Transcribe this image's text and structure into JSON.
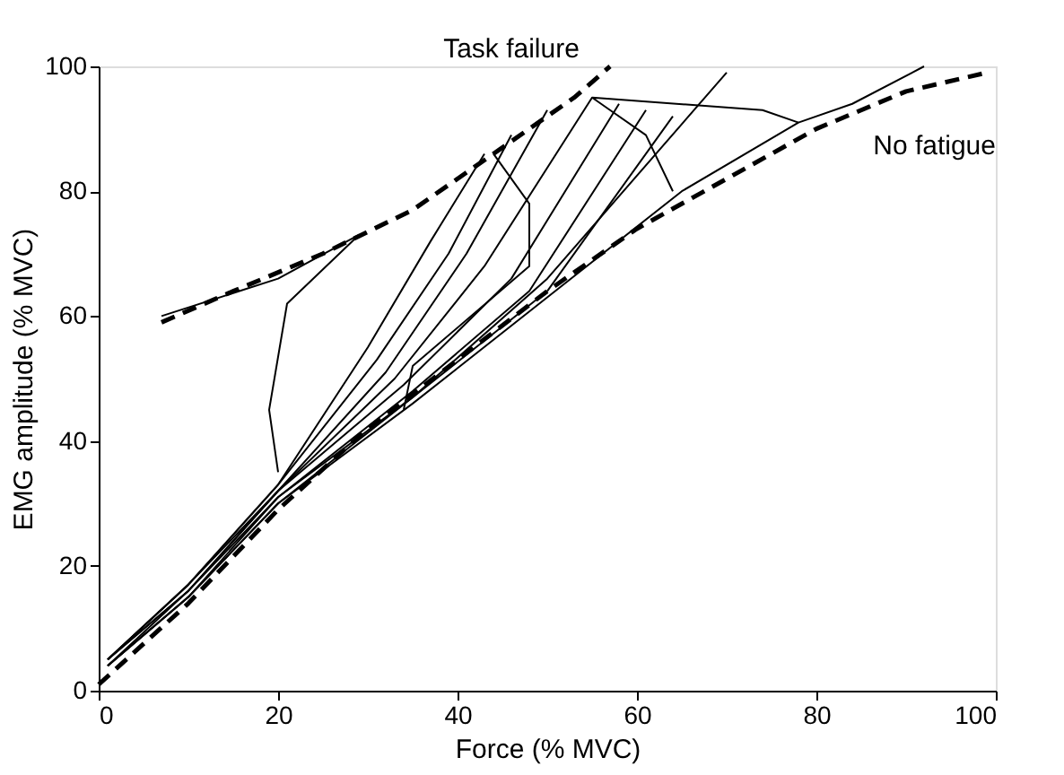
{
  "chart_data": {
    "type": "line",
    "xlabel": "Force (% MVC)",
    "ylabel": "EMG amplitude (% MVC)",
    "xlim": [
      0,
      100
    ],
    "ylim": [
      0,
      100
    ],
    "xticks": [
      0,
      20,
      40,
      60,
      80,
      100
    ],
    "yticks": [
      0,
      20,
      40,
      60,
      80,
      100
    ],
    "grid": false,
    "marker": "none",
    "series": [
      {
        "color": "#000000",
        "line_style": "dashed",
        "x": [
          7,
          15,
          25,
          35,
          42,
          48,
          53,
          57
        ],
        "values": [
          59,
          64,
          70,
          77,
          84,
          90,
          95,
          100
        ]
      },
      {
        "color": "#000000",
        "line_style": "dashed",
        "x": [
          0,
          10,
          20,
          30,
          40,
          50,
          60,
          70,
          80,
          90,
          99
        ],
        "values": [
          1,
          14,
          29,
          42,
          53,
          64,
          74,
          82,
          90,
          96,
          99
        ]
      },
      {
        "color": "#000000",
        "line_style": "solid",
        "x": [
          1,
          10,
          20,
          30,
          37,
          43
        ],
        "values": [
          5,
          17,
          33,
          55,
          72,
          86
        ]
      },
      {
        "color": "#000000",
        "line_style": "solid",
        "x": [
          1,
          10,
          20,
          31,
          39,
          46
        ],
        "values": [
          5,
          17,
          33,
          53,
          70,
          89
        ]
      },
      {
        "color": "#000000",
        "line_style": "solid",
        "x": [
          1,
          10,
          20,
          32,
          41,
          50
        ],
        "values": [
          5,
          17,
          32,
          51,
          70,
          93
        ]
      },
      {
        "color": "#000000",
        "line_style": "solid",
        "x": [
          1,
          10,
          20,
          33,
          43,
          55
        ],
        "values": [
          5,
          16,
          32,
          50,
          68,
          95
        ]
      },
      {
        "color": "#000000",
        "line_style": "solid",
        "x": [
          1,
          10,
          20,
          34,
          46,
          58
        ],
        "values": [
          5,
          16,
          32,
          49,
          66,
          94
        ]
      },
      {
        "color": "#000000",
        "line_style": "solid",
        "x": [
          1,
          10,
          20,
          35,
          48,
          61
        ],
        "values": [
          4,
          16,
          31,
          48,
          64,
          93
        ]
      },
      {
        "color": "#000000",
        "line_style": "solid",
        "x": [
          1,
          10,
          20,
          35,
          50,
          64
        ],
        "values": [
          4,
          15,
          31,
          47,
          64,
          92
        ]
      },
      {
        "color": "#000000",
        "line_style": "solid",
        "x": [
          1,
          10,
          20,
          35,
          50,
          70
        ],
        "values": [
          4,
          15,
          30,
          47,
          66,
          99
        ]
      },
      {
        "color": "#000000",
        "line_style": "solid",
        "x": [
          1,
          10,
          20,
          35,
          50,
          65,
          78,
          84,
          92
        ],
        "values": [
          4,
          15,
          30,
          46,
          63,
          80,
          91,
          94,
          100
        ]
      },
      {
        "color": "#000000",
        "line_style": "solid",
        "x": [
          7,
          20,
          29,
          21,
          19,
          20
        ],
        "values": [
          60,
          66,
          73,
          62,
          45,
          35
        ]
      },
      {
        "color": "#000000",
        "line_style": "solid",
        "x": [
          34,
          35,
          48,
          48,
          44
        ],
        "values": [
          45,
          52,
          68,
          78,
          86
        ]
      },
      {
        "color": "#000000",
        "line_style": "solid",
        "x": [
          64,
          61,
          57,
          55,
          74,
          78
        ],
        "values": [
          80,
          89,
          93,
          95,
          93,
          91
        ]
      }
    ],
    "annotations": [
      "Task failure",
      "No fatigue"
    ]
  }
}
